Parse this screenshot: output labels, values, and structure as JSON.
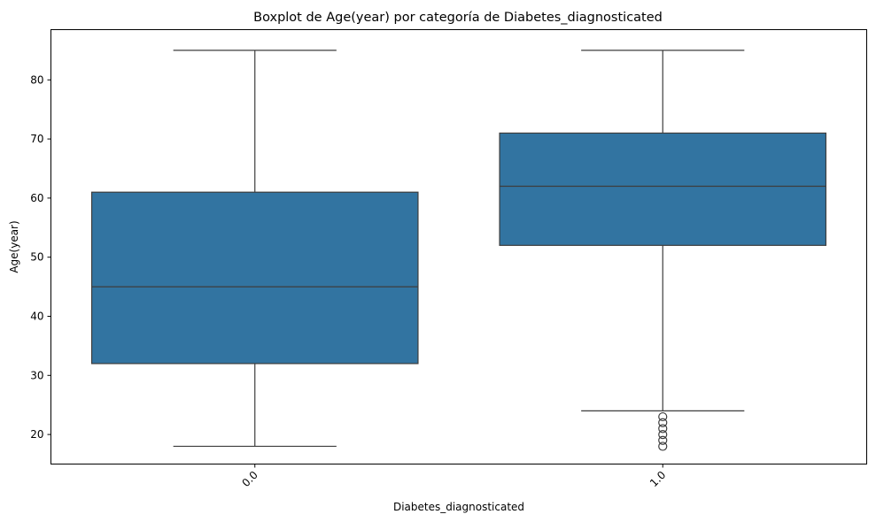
{
  "chart_data": {
    "type": "box",
    "title": "Boxplot de Age(year) por categoría de Diabetes_diagnosticated",
    "xlabel": "Diabetes_diagnosticated",
    "ylabel": "Age(year)",
    "categories": [
      "0.0",
      "1.0"
    ],
    "boxes": [
      {
        "category": "0.0",
        "whisker_low": 18,
        "q1": 32,
        "median": 45,
        "q3": 61,
        "whisker_high": 85,
        "outliers": []
      },
      {
        "category": "1.0",
        "whisker_low": 24,
        "q1": 52,
        "median": 62,
        "q3": 71,
        "whisker_high": 85,
        "outliers": [
          23,
          22,
          21,
          20,
          19,
          18
        ]
      }
    ],
    "ylim": [
      15,
      88.5
    ],
    "yticks": [
      20,
      30,
      40,
      50,
      60,
      70,
      80
    ],
    "xtick_rotation": 45,
    "grid": false,
    "box_color": "#3274a1",
    "line_color": "#3d3d3d"
  }
}
